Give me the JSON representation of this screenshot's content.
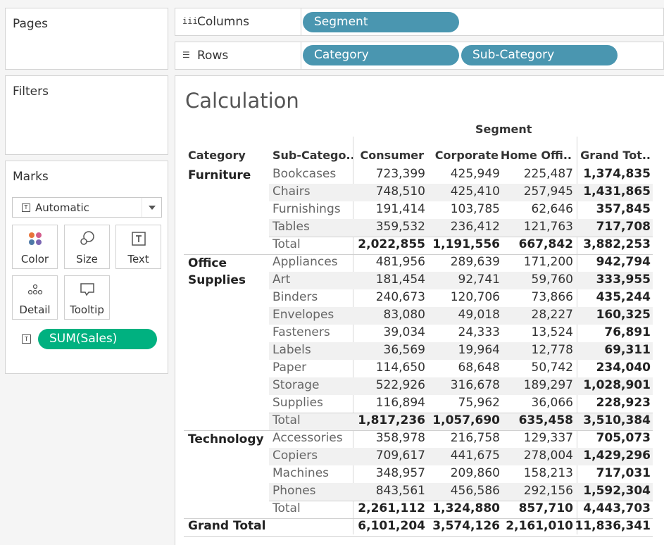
{
  "cards": {
    "pages": "Pages",
    "filters": "Filters",
    "marks": "Marks"
  },
  "marks": {
    "type_selected": "Automatic",
    "buttons": {
      "color": "Color",
      "size": "Size",
      "text": "Text",
      "detail": "Detail",
      "tooltip": "Tooltip"
    },
    "field_pill": "SUM(Sales)",
    "field_pill_color": "#00b180"
  },
  "shelves": {
    "columns_label": "Columns",
    "rows_label": "Rows",
    "columns_pills": [
      "Segment"
    ],
    "rows_pills": [
      "Category",
      "Sub-Category"
    ],
    "pill_color": "#4a96b0"
  },
  "view": {
    "title": "Calculation",
    "column_group_header": "Segment",
    "headers": {
      "category": "Category",
      "subcategory": "Sub-Catego..",
      "consumer": "Consumer",
      "corporate": "Corporate",
      "home_office": "Home Offi..",
      "grand_total": "Grand Tot.."
    },
    "categories": [
      {
        "name": "Furniture",
        "rows": [
          {
            "sub": "Bookcases",
            "consumer": "723,399",
            "corporate": "425,949",
            "home": "225,487",
            "total": "1,374,835"
          },
          {
            "sub": "Chairs",
            "consumer": "748,510",
            "corporate": "425,410",
            "home": "257,945",
            "total": "1,431,865"
          },
          {
            "sub": "Furnishings",
            "consumer": "191,414",
            "corporate": "103,785",
            "home": "62,646",
            "total": "357,845"
          },
          {
            "sub": "Tables",
            "consumer": "359,532",
            "corporate": "236,412",
            "home": "121,763",
            "total": "717,708"
          }
        ],
        "total": {
          "sub": "Total",
          "consumer": "2,022,855",
          "corporate": "1,191,556",
          "home": "667,842",
          "total": "3,882,253"
        }
      },
      {
        "name": "Office Supplies",
        "rows": [
          {
            "sub": "Appliances",
            "consumer": "481,956",
            "corporate": "289,639",
            "home": "171,200",
            "total": "942,794"
          },
          {
            "sub": "Art",
            "consumer": "181,454",
            "corporate": "92,741",
            "home": "59,760",
            "total": "333,955"
          },
          {
            "sub": "Binders",
            "consumer": "240,673",
            "corporate": "120,706",
            "home": "73,866",
            "total": "435,244"
          },
          {
            "sub": "Envelopes",
            "consumer": "83,080",
            "corporate": "49,018",
            "home": "28,227",
            "total": "160,325"
          },
          {
            "sub": "Fasteners",
            "consumer": "39,034",
            "corporate": "24,333",
            "home": "13,524",
            "total": "76,891"
          },
          {
            "sub": "Labels",
            "consumer": "36,569",
            "corporate": "19,964",
            "home": "12,778",
            "total": "69,311"
          },
          {
            "sub": "Paper",
            "consumer": "114,650",
            "corporate": "68,648",
            "home": "50,742",
            "total": "234,040"
          },
          {
            "sub": "Storage",
            "consumer": "522,926",
            "corporate": "316,678",
            "home": "189,297",
            "total": "1,028,901"
          },
          {
            "sub": "Supplies",
            "consumer": "116,894",
            "corporate": "75,962",
            "home": "36,066",
            "total": "228,923"
          }
        ],
        "total": {
          "sub": "Total",
          "consumer": "1,817,236",
          "corporate": "1,057,690",
          "home": "635,458",
          "total": "3,510,384"
        }
      },
      {
        "name": "Technology",
        "rows": [
          {
            "sub": "Accessories",
            "consumer": "358,978",
            "corporate": "216,758",
            "home": "129,337",
            "total": "705,073"
          },
          {
            "sub": "Copiers",
            "consumer": "709,617",
            "corporate": "441,675",
            "home": "278,004",
            "total": "1,429,296"
          },
          {
            "sub": "Machines",
            "consumer": "348,957",
            "corporate": "209,860",
            "home": "158,213",
            "total": "717,031"
          },
          {
            "sub": "Phones",
            "consumer": "843,561",
            "corporate": "456,586",
            "home": "292,156",
            "total": "1,592,304"
          }
        ],
        "total": {
          "sub": "Total",
          "consumer": "2,261,112",
          "corporate": "1,324,880",
          "home": "857,710",
          "total": "4,443,703"
        }
      }
    ],
    "grand_total": {
      "label": "Grand Total",
      "consumer": "6,101,204",
      "corporate": "3,574,126",
      "home": "2,161,010",
      "total": "11,836,341"
    }
  }
}
